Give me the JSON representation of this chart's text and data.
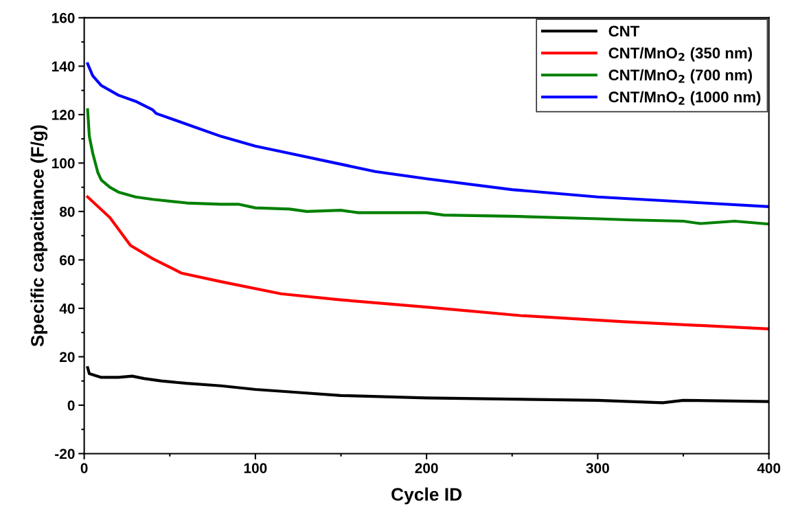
{
  "chart_data": {
    "type": "line",
    "xlabel": "Cycle ID",
    "ylabel": "Specific capacitance (F/g)",
    "xlim": [
      0,
      400
    ],
    "xticks": [
      0,
      100,
      200,
      300,
      400
    ],
    "ylim": [
      -20,
      160
    ],
    "yticks": [
      -20,
      0,
      20,
      40,
      60,
      80,
      100,
      120,
      140,
      160
    ],
    "grid": false,
    "legend": "top right",
    "marker": "none",
    "line_style": "solid",
    "series": [
      {
        "name": "CNT",
        "color": "#000000",
        "x": [
          2,
          3,
          10,
          20,
          28,
          35,
          45,
          60,
          80,
          100,
          120,
          150,
          200,
          250,
          300,
          338,
          350,
          400
        ],
        "values": [
          15.5,
          13,
          11.5,
          11.5,
          12,
          11,
          10,
          9,
          8,
          6.5,
          5.5,
          4,
          3,
          2.5,
          2,
          1,
          2,
          1.5
        ]
      },
      {
        "name": "CNT/MnO$_{2}$ (350 nm)",
        "color": "#ff0000",
        "x": [
          2,
          15,
          27,
          40,
          57,
          80,
          115,
          150,
          200,
          255,
          315,
          400
        ],
        "values": [
          86,
          77.5,
          66,
          60.5,
          54.5,
          51,
          46,
          43.5,
          40.5,
          37,
          34.5,
          31.5
        ]
      },
      {
        "name": "CNT/MnO$_{2}$ (700 nm)",
        "color": "#008000",
        "x": [
          2,
          3,
          5,
          8,
          10,
          15,
          20,
          30,
          40,
          60,
          80,
          90,
          100,
          120,
          130,
          150,
          160,
          200,
          210,
          250,
          300,
          320,
          350,
          360,
          380,
          400
        ],
        "values": [
          122,
          111,
          104,
          96,
          93,
          90,
          88,
          86,
          85,
          83.5,
          83,
          83,
          81.5,
          81,
          80,
          80.5,
          79.5,
          79.5,
          78.5,
          78,
          77,
          76.5,
          76,
          75,
          76,
          74.8
        ]
      },
      {
        "name": "CNT/MnO$_{2}$ (1000 nm)",
        "color": "#0000ff",
        "x": [
          2,
          5,
          10,
          20,
          30,
          40,
          42,
          60,
          80,
          100,
          120,
          150,
          170,
          200,
          250,
          300,
          350,
          400
        ],
        "values": [
          141,
          136,
          132,
          128,
          125.5,
          122,
          120.5,
          116,
          111,
          107,
          104,
          99.5,
          96.5,
          93.5,
          89,
          86,
          84,
          82
        ]
      }
    ]
  }
}
